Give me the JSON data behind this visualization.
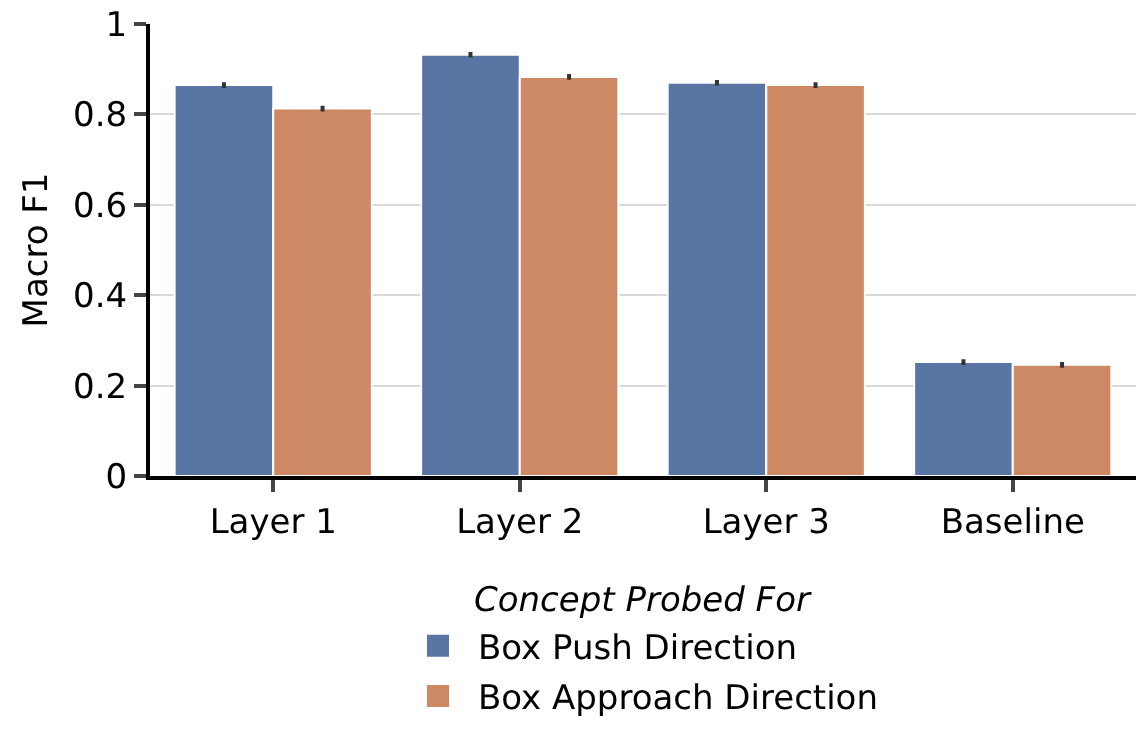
{
  "chart_data": {
    "type": "bar",
    "ylabel": "Macro F1",
    "legend_title": "Concept Probed For",
    "categories": [
      "Layer 1",
      "Layer 2",
      "Layer 3",
      "Baseline"
    ],
    "series": [
      {
        "name": "Box Push Direction",
        "color": "#5875a4",
        "values": [
          0.865,
          0.932,
          0.87,
          0.252
        ],
        "errors": [
          0.003,
          0.003,
          0.003,
          0.003
        ]
      },
      {
        "name": "Box Approach Direction",
        "color": "#cc8963",
        "values": [
          0.813,
          0.883,
          0.865,
          0.246
        ],
        "errors": [
          0.003,
          0.003,
          0.003,
          0.003
        ]
      }
    ],
    "ylim": [
      0,
      1
    ],
    "yticks": [
      0,
      0.2,
      0.4,
      0.6,
      0.8,
      1
    ],
    "grid": "y",
    "legend": "bottom"
  }
}
